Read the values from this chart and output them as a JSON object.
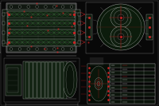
{
  "bg_color": "#080808",
  "line_color": "#c8c8c8",
  "red_color": "#cc2222",
  "green_color": "#226622",
  "green_bright": "#338833",
  "white_color": "#e0e0e0",
  "dim_color": "#555555",
  "hatch_color": "#1a3a1a",
  "figsize": [
    2.0,
    1.33
  ],
  "dpi": 100
}
